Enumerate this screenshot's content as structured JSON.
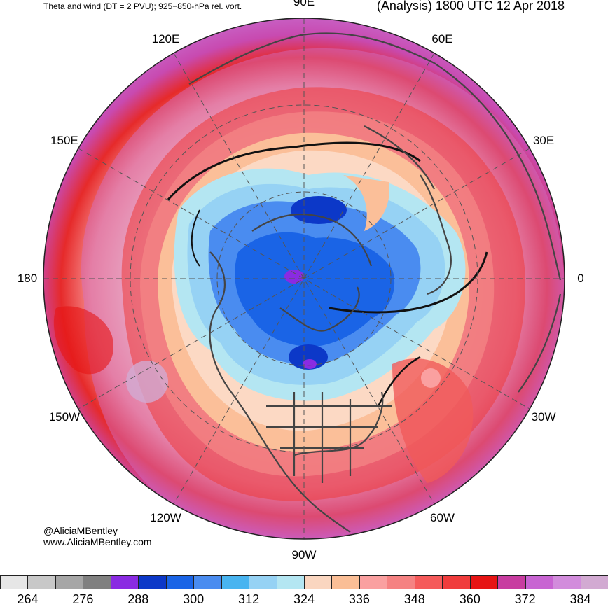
{
  "header": {
    "left_title": "Theta and wind (DT = 2 PVU); 925−850-hPa rel. vort.",
    "right_title": "(Analysis) 1800 UTC 12 Apr 2018"
  },
  "credits": {
    "handle": "@AliciaMBentley",
    "site": "www.AliciaMBentley.com"
  },
  "longitude_labels": [
    {
      "text": "90E",
      "angle": 90
    },
    {
      "text": "60E",
      "angle": 60
    },
    {
      "text": "30E",
      "angle": 30
    },
    {
      "text": "0",
      "angle": 0
    },
    {
      "text": "30W",
      "angle": -30
    },
    {
      "text": "60W",
      "angle": -60
    },
    {
      "text": "90W",
      "angle": -90
    },
    {
      "text": "120W",
      "angle": -120
    },
    {
      "text": "150W",
      "angle": -150
    },
    {
      "text": "180",
      "angle": 180
    },
    {
      "text": "150E",
      "angle": 150
    },
    {
      "text": "120E",
      "angle": 120
    }
  ],
  "colorbar": {
    "colors": [
      "#e6e6e6",
      "#c8c8c8",
      "#a6a6a6",
      "#808080",
      "#8a2be2",
      "#0c38c8",
      "#1a64e6",
      "#4a8cf0",
      "#48b4f0",
      "#96d2f4",
      "#b4e6f2",
      "#fad6c0",
      "#fabe96",
      "#faa0a0",
      "#f58282",
      "#f55a5a",
      "#f03c3c",
      "#e61414",
      "#c83ca0",
      "#c864d2",
      "#d28cdc",
      "#d2aad2"
    ],
    "tick_labels": [
      "264",
      "276",
      "288",
      "300",
      "312",
      "324",
      "336",
      "348",
      "360",
      "372",
      "384"
    ]
  }
}
